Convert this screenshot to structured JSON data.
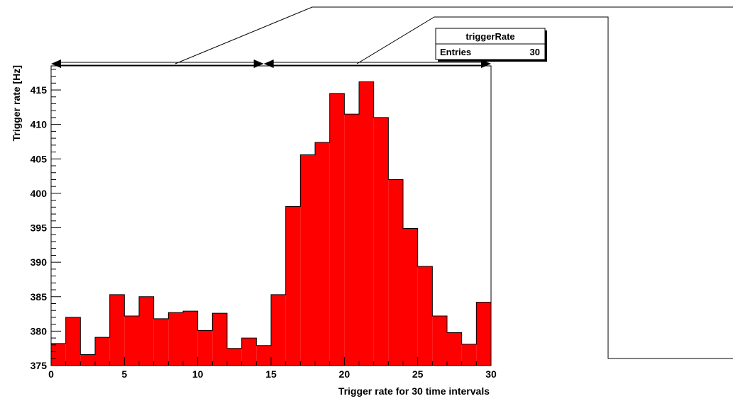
{
  "stats_box": {
    "title": "triggerRate",
    "entries_label": "Entries",
    "entries_value": "30"
  },
  "colors": {
    "fill": "#ff0000",
    "line": "#000000",
    "background": "#ffffff"
  },
  "chart_data": {
    "type": "bar",
    "title": "",
    "xlabel": "Trigger rate for 30 time intervals",
    "ylabel": "Trigger rate [Hz]",
    "xlim": [
      0,
      30
    ],
    "ylim": [
      375,
      418.5
    ],
    "x_ticks": [
      "0",
      "5",
      "10",
      "15",
      "20",
      "25",
      "30"
    ],
    "y_ticks": [
      "375",
      "380",
      "385",
      "390",
      "395",
      "400",
      "405",
      "410",
      "415"
    ],
    "bin_edges": [
      0,
      1,
      2,
      3,
      4,
      5,
      6,
      7,
      8,
      9,
      10,
      11,
      12,
      13,
      14,
      15,
      16,
      17,
      18,
      19,
      20,
      21,
      22,
      23,
      24,
      25,
      26,
      27,
      28,
      29,
      30
    ],
    "values": [
      378.2,
      382.0,
      376.6,
      379.1,
      385.3,
      382.2,
      385.0,
      381.8,
      382.7,
      382.9,
      380.1,
      382.6,
      377.5,
      379.0,
      377.9,
      385.3,
      398.1,
      405.6,
      407.4,
      414.5,
      411.5,
      416.2,
      411.0,
      402.0,
      394.9,
      389.4,
      382.2,
      379.8,
      378.1,
      384.2
    ],
    "arrows": [
      {
        "from": 0,
        "to": 14.5
      },
      {
        "from": 14.5,
        "to": 30
      }
    ],
    "grid": false,
    "legend": "none"
  }
}
